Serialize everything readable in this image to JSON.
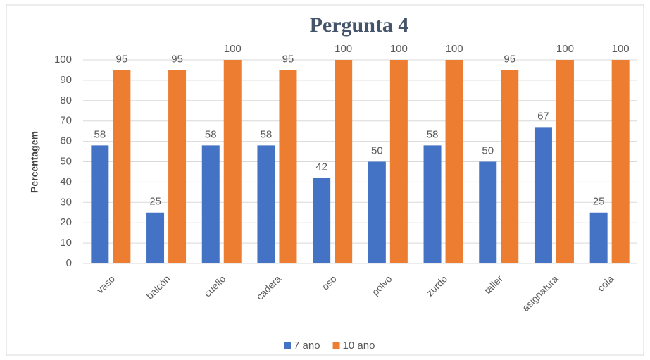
{
  "chart_data": {
    "type": "bar",
    "title": "Pergunta 4",
    "y_label": "Percentagem",
    "categories": [
      "vaso",
      "balcón",
      "cuello",
      "cadera",
      "oso",
      "polvo",
      "zurdo",
      "taller",
      "asignatura",
      "cola"
    ],
    "series": [
      {
        "name": "7 ano",
        "color": "#4472c4",
        "values": [
          58,
          25,
          58,
          58,
          42,
          50,
          58,
          50,
          67,
          25
        ]
      },
      {
        "name": "10 ano",
        "color": "#ed7d31",
        "values": [
          95,
          95,
          100,
          95,
          100,
          100,
          100,
          95,
          100,
          100
        ]
      }
    ],
    "ylim": [
      0,
      100
    ],
    "yticks": [
      0,
      10,
      20,
      30,
      40,
      50,
      60,
      70,
      80,
      90,
      100
    ],
    "grid": true,
    "legend": "bottom"
  }
}
